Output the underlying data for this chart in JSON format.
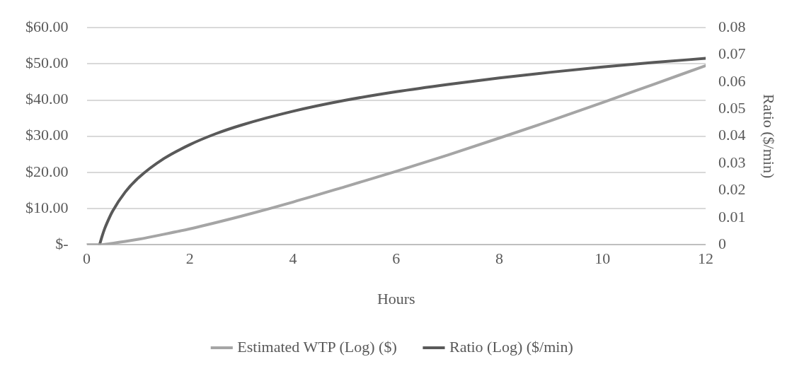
{
  "chart_data": {
    "type": "line",
    "xlabel": "Hours",
    "y2label": "Ratio ($/min)",
    "xlim": [
      0,
      12
    ],
    "xticks": [
      0,
      2,
      4,
      6,
      8,
      10,
      12
    ],
    "ylim": [
      0,
      60
    ],
    "yticks": [
      {
        "value": 0,
        "label": "$-"
      },
      {
        "value": 10,
        "label": "$10.00"
      },
      {
        "value": 20,
        "label": "$20.00"
      },
      {
        "value": 30,
        "label": "$30.00"
      },
      {
        "value": 40,
        "label": "$40.00"
      },
      {
        "value": 50,
        "label": "$50.00"
      },
      {
        "value": 60,
        "label": "$60.00"
      }
    ],
    "y2lim": [
      0,
      0.08
    ],
    "y2ticks": [
      0,
      0.01,
      0.02,
      0.03,
      0.04,
      0.05,
      0.06,
      0.07,
      0.08
    ],
    "grid": "y",
    "legend": "bottom",
    "marker": "none",
    "line_style": "solid",
    "series": [
      {
        "name": "Estimated WTP (Log) ($)",
        "color": "#a5a5a5",
        "x": [
          0,
          0.25,
          0.5,
          0.75,
          1,
          1.5,
          2,
          2.5,
          3,
          4,
          5,
          6,
          7,
          8,
          9,
          10,
          11,
          12
        ],
        "values": [
          0,
          0,
          0.4,
          0.9,
          1.5,
          2.9,
          4.4,
          6.1,
          7.9,
          11.8,
          16,
          20.3,
          24.8,
          29.5,
          34.3,
          39.3,
          44.4,
          49.5
        ]
      },
      {
        "name": "Ratio (Log) ($/min)",
        "color": "#595959",
        "axis": "y2",
        "x": [
          0.25,
          0.3,
          0.35,
          0.4,
          0.5,
          0.75,
          1,
          1.5,
          2,
          2.5,
          3,
          4,
          5,
          6,
          7,
          8,
          9,
          10,
          11,
          12
        ],
        "values": [
          0,
          0.0032,
          0.006,
          0.0083,
          0.0123,
          0.0195,
          0.0246,
          0.0318,
          0.0369,
          0.0409,
          0.0441,
          0.0492,
          0.0532,
          0.0564,
          0.0591,
          0.0615,
          0.0636,
          0.0655,
          0.0672,
          0.0687
        ]
      }
    ]
  }
}
